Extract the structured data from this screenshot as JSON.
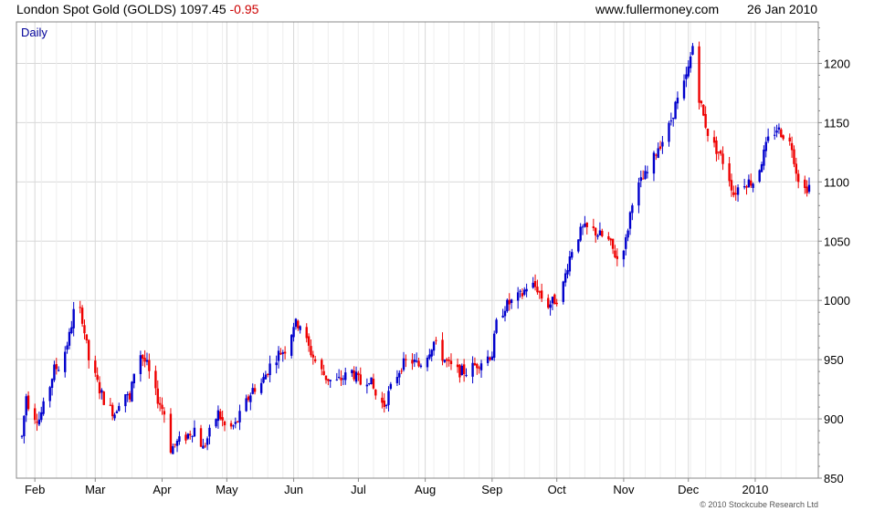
{
  "header": {
    "instrument": "London Spot Gold (GOLDS)",
    "last": "1097.45",
    "change": "-0.95",
    "site": "www.fullermoney.com",
    "date": "26 Jan 2010"
  },
  "footer": {
    "copyright": "© 2010 Stockcube Research Ltd"
  },
  "colors": {
    "up": "#0000cc",
    "down": "#ee0000",
    "grid": "#d8d8d8",
    "frame": "#888888",
    "label": "#000099"
  },
  "chart_data": {
    "type": "candlestick",
    "interval_label": "Daily",
    "title": "London Spot Gold (GOLDS)",
    "ylim": [
      850,
      1235
    ],
    "y_ticks": [
      850,
      900,
      950,
      1000,
      1050,
      1100,
      1150,
      1200
    ],
    "x_ticks": [
      "Feb",
      "Mar",
      "Apr",
      "May",
      "Jun",
      "Jul",
      "Aug",
      "Sep",
      "Oct",
      "Nov",
      "Dec",
      "2010"
    ],
    "y_axis_side": "right",
    "grid": true,
    "series_path": [
      {
        "x": "Jan 26",
        "y": 885
      },
      {
        "x": "Jan 28",
        "y": 920
      },
      {
        "x": "Jan 30",
        "y": 905
      },
      {
        "x": "Feb 3",
        "y": 900
      },
      {
        "x": "Feb 6",
        "y": 915
      },
      {
        "x": "Feb 10",
        "y": 942
      },
      {
        "x": "Feb 13",
        "y": 945
      },
      {
        "x": "Feb 17",
        "y": 970
      },
      {
        "x": "Feb 20",
        "y": 1000
      },
      {
        "x": "Feb 23",
        "y": 985
      },
      {
        "x": "Feb 26",
        "y": 950
      },
      {
        "x": "Mar 3",
        "y": 925
      },
      {
        "x": "Mar 6",
        "y": 912
      },
      {
        "x": "Mar 10",
        "y": 905
      },
      {
        "x": "Mar 14",
        "y": 925
      },
      {
        "x": "Mar 17",
        "y": 915
      },
      {
        "x": "Mar 19",
        "y": 940
      },
      {
        "x": "Mar 22",
        "y": 955
      },
      {
        "x": "Mar 25",
        "y": 945
      },
      {
        "x": "Mar 28",
        "y": 925
      },
      {
        "x": "Apr 2",
        "y": 905
      },
      {
        "x": "Apr 5",
        "y": 875
      },
      {
        "x": "Apr 8",
        "y": 880
      },
      {
        "x": "Apr 12",
        "y": 885
      },
      {
        "x": "Apr 16",
        "y": 892
      },
      {
        "x": "Apr 20",
        "y": 875
      },
      {
        "x": "Apr 23",
        "y": 888
      },
      {
        "x": "Apr 27",
        "y": 905
      },
      {
        "x": "May 1",
        "y": 890
      },
      {
        "x": "May 5",
        "y": 895
      },
      {
        "x": "May 9",
        "y": 910
      },
      {
        "x": "May 13",
        "y": 925
      },
      {
        "x": "May 17",
        "y": 930
      },
      {
        "x": "May 21",
        "y": 945
      },
      {
        "x": "May 25",
        "y": 955
      },
      {
        "x": "May 29",
        "y": 960
      },
      {
        "x": "Jun 1",
        "y": 980
      },
      {
        "x": "Jun 4",
        "y": 980
      },
      {
        "x": "Jun 8",
        "y": 960
      },
      {
        "x": "Jun 12",
        "y": 945
      },
      {
        "x": "Jun 16",
        "y": 935
      },
      {
        "x": "Jun 20",
        "y": 930
      },
      {
        "x": "Jun 24",
        "y": 935
      },
      {
        "x": "Jun 28",
        "y": 940
      },
      {
        "x": "Jul 2",
        "y": 930
      },
      {
        "x": "Jul 6",
        "y": 935
      },
      {
        "x": "Jul 10",
        "y": 915
      },
      {
        "x": "Jul 13",
        "y": 912
      },
      {
        "x": "Jul 17",
        "y": 930
      },
      {
        "x": "Jul 21",
        "y": 945
      },
      {
        "x": "Jul 25",
        "y": 950
      },
      {
        "x": "Jul 29",
        "y": 945
      },
      {
        "x": "Aug 2",
        "y": 955
      },
      {
        "x": "Aug 5",
        "y": 965
      },
      {
        "x": "Aug 8",
        "y": 955
      },
      {
        "x": "Aug 12",
        "y": 945
      },
      {
        "x": "Aug 16",
        "y": 940
      },
      {
        "x": "Aug 20",
        "y": 940
      },
      {
        "x": "Aug 24",
        "y": 945
      },
      {
        "x": "Aug 28",
        "y": 950
      },
      {
        "x": "Sep 1",
        "y": 955
      },
      {
        "x": "Sep 3",
        "y": 980
      },
      {
        "x": "Sep 7",
        "y": 995
      },
      {
        "x": "Sep 11",
        "y": 1000
      },
      {
        "x": "Sep 15",
        "y": 1005
      },
      {
        "x": "Sep 18",
        "y": 1015
      },
      {
        "x": "Sep 22",
        "y": 1010
      },
      {
        "x": "Sep 26",
        "y": 995
      },
      {
        "x": "Sep 30",
        "y": 1000
      },
      {
        "x": "Oct 3",
        "y": 1005
      },
      {
        "x": "Oct 6",
        "y": 1030
      },
      {
        "x": "Oct 9",
        "y": 1050
      },
      {
        "x": "Oct 13",
        "y": 1060
      },
      {
        "x": "Oct 17",
        "y": 1060
      },
      {
        "x": "Oct 21",
        "y": 1055
      },
      {
        "x": "Oct 25",
        "y": 1050
      },
      {
        "x": "Oct 29",
        "y": 1035
      },
      {
        "x": "Nov 2",
        "y": 1050
      },
      {
        "x": "Nov 5",
        "y": 1085
      },
      {
        "x": "Nov 9",
        "y": 1100
      },
      {
        "x": "Nov 13",
        "y": 1110
      },
      {
        "x": "Nov 17",
        "y": 1130
      },
      {
        "x": "Nov 21",
        "y": 1140
      },
      {
        "x": "Nov 25",
        "y": 1165
      },
      {
        "x": "Nov 28",
        "y": 1175
      },
      {
        "x": "Dec 1",
        "y": 1195
      },
      {
        "x": "Dec 3",
        "y": 1215
      },
      {
        "x": "Dec 5",
        "y": 1180
      },
      {
        "x": "Dec 8",
        "y": 1155
      },
      {
        "x": "Dec 11",
        "y": 1135
      },
      {
        "x": "Dec 15",
        "y": 1125
      },
      {
        "x": "Dec 19",
        "y": 1110
      },
      {
        "x": "Dec 22",
        "y": 1090
      },
      {
        "x": "Dec 26",
        "y": 1100
      },
      {
        "x": "Dec 29",
        "y": 1100
      },
      {
        "x": "Jan 1",
        "y": 1100
      },
      {
        "x": "Jan 4",
        "y": 1118
      },
      {
        "x": "Jan 7",
        "y": 1135
      },
      {
        "x": "Jan 11",
        "y": 1145
      },
      {
        "x": "Jan 14",
        "y": 1140
      },
      {
        "x": "Jan 18",
        "y": 1130
      },
      {
        "x": "Jan 20",
        "y": 1110
      },
      {
        "x": "Jan 23",
        "y": 1092
      },
      {
        "x": "Jan 26",
        "y": 1097
      }
    ]
  }
}
